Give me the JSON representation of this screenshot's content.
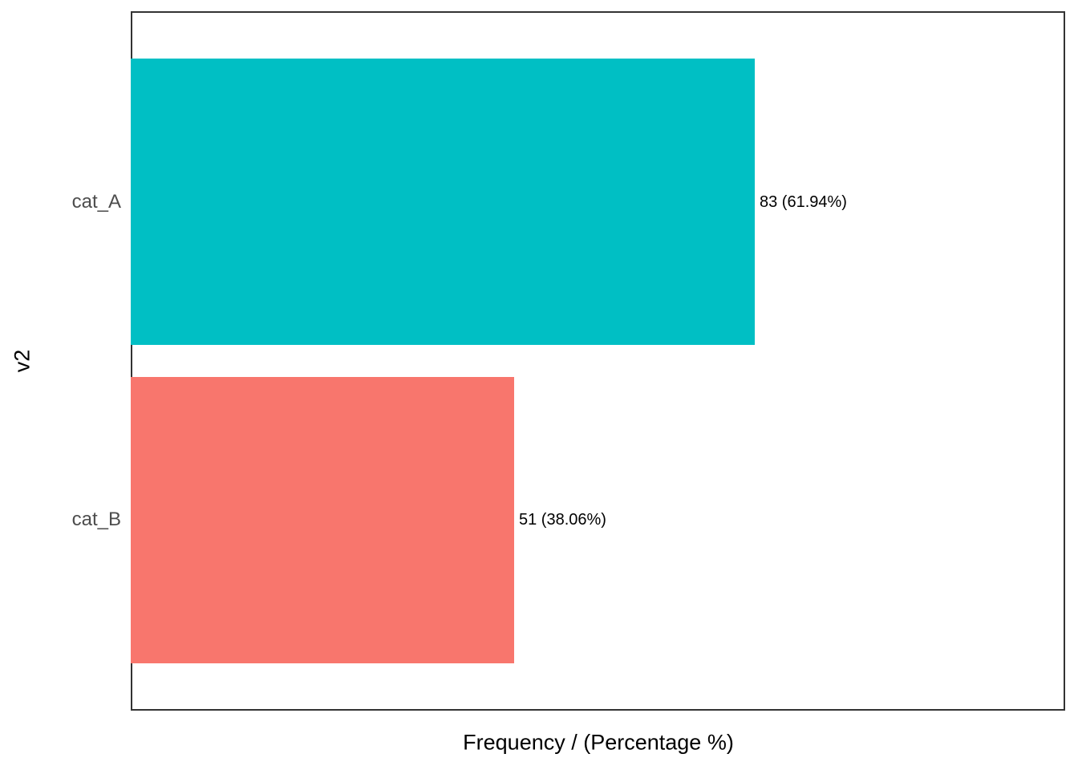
{
  "figure": {
    "background": "#ffffff",
    "panel_border_color": "#333333"
  },
  "chart_data": {
    "type": "bar",
    "orientation": "horizontal",
    "title": "",
    "xlabel": "Frequency / (Percentage %)",
    "ylabel": "v2",
    "categories": [
      "cat_A",
      "cat_B"
    ],
    "values": [
      83,
      51
    ],
    "percentages": [
      61.94,
      38.06
    ],
    "bar_labels": [
      "83 (61.94%)",
      "51 (38.06%)"
    ],
    "bar_colors": [
      "#00BFC4",
      "#F8766D"
    ],
    "xlim": [
      0,
      124.3
    ],
    "grid": false,
    "legend": "none",
    "axis_ticks": "none",
    "tick_label_color": "#4d4d4d",
    "axis_title_color": "#000000",
    "bar_label_color": "#000000"
  }
}
